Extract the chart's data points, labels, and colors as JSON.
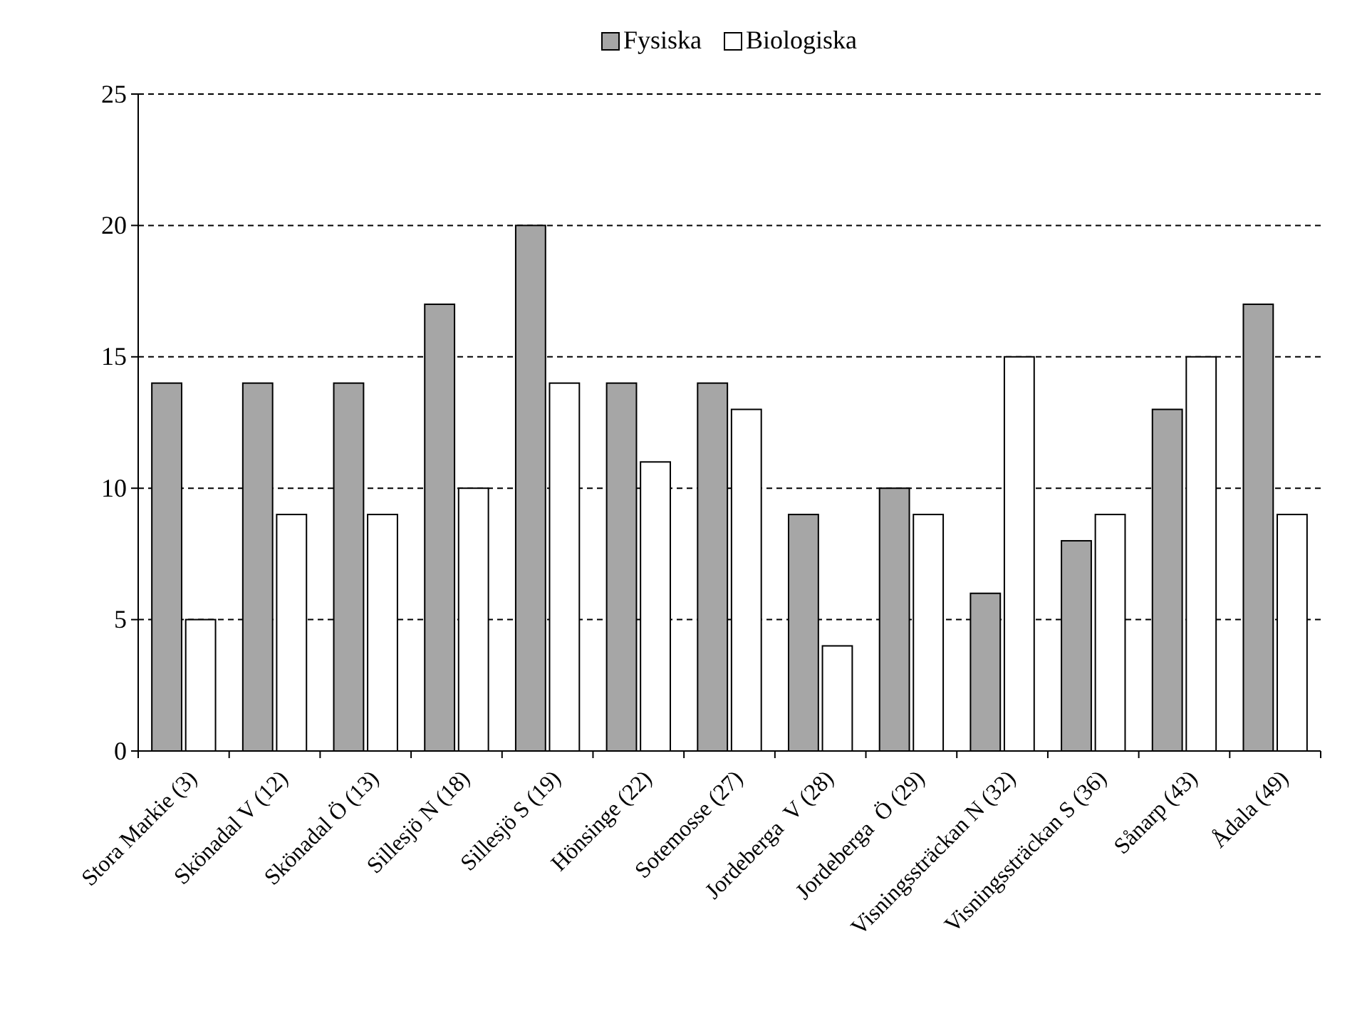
{
  "chart_data": {
    "type": "bar",
    "categories": [
      "Stora Markie (3)",
      "Skönadal V (12)",
      "Skönadal Ö (13)",
      "Sillesjö N (18)",
      "Sillesjö S (19)",
      "Hönsinge (22)",
      "Sotemosse (27)",
      "Jordeberga  V (28)",
      "Jordeberga  Ö (29)",
      "Visningssträckan N (32)",
      "Visningssträckan S (36)",
      "Sånarp (43)",
      "Ådala (49)"
    ],
    "series": [
      {
        "name": "Fysiska",
        "color": "#a6a6a6",
        "values": [
          14,
          14,
          14,
          17,
          20,
          14,
          14,
          9,
          10,
          6,
          8,
          13,
          17
        ]
      },
      {
        "name": "Biologiska",
        "color": "#ffffff",
        "values": [
          5,
          9,
          9,
          10,
          14,
          11,
          13,
          4,
          9,
          15,
          9,
          15,
          9
        ]
      }
    ],
    "ylim": [
      0,
      25
    ],
    "yticks": [
      0,
      5,
      10,
      15,
      20,
      25
    ],
    "grid": "y",
    "legend": "top"
  }
}
